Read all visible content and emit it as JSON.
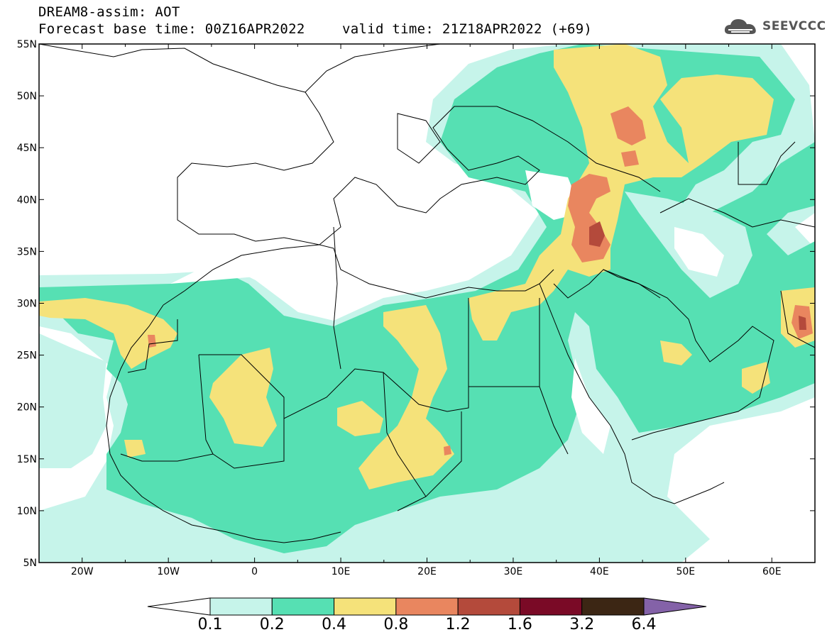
{
  "header": {
    "line1": "DREAM8-assim: AOT",
    "line2": "Forecast base time: 00Z16APR2022",
    "valid": "valid time: 21Z18APR2022 (+69)"
  },
  "logo": {
    "text": "SEEVCCC",
    "icon": "cloud-icon",
    "color": "#555555"
  },
  "map": {
    "lon_range": [
      -25,
      65
    ],
    "lat_range": [
      5,
      55
    ],
    "lon_ticks": [
      "20W",
      "10W",
      "0",
      "10E",
      "20E",
      "30E",
      "40E",
      "50E",
      "60E"
    ],
    "lat_ticks": [
      "55N",
      "50N",
      "45N",
      "40N",
      "35N",
      "30N",
      "25N",
      "20N",
      "15N",
      "10N",
      "5N"
    ]
  },
  "colorbar": {
    "labels": [
      "0.1",
      "0.2",
      "0.4",
      "0.8",
      "1.2",
      "1.6",
      "3.2",
      "6.4"
    ],
    "colors": [
      "#c6f4ea",
      "#56e0b3",
      "#f5e27a",
      "#e9865f",
      "#b44a3b",
      "#7a0a26",
      "#3c2614",
      "#8462a8"
    ]
  }
}
